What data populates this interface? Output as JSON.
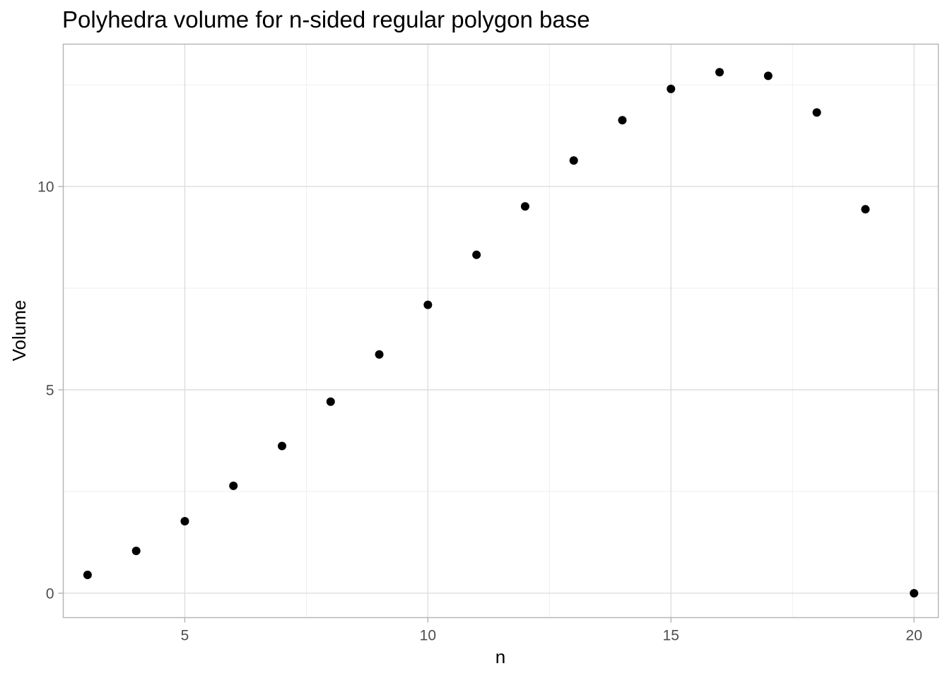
{
  "chart_data": {
    "type": "scatter",
    "title": "Polyhedra volume for n-sided regular polygon base",
    "xlabel": "n",
    "ylabel": "Volume",
    "xlim": [
      2.5,
      20.5
    ],
    "ylim": [
      -0.6,
      13.5
    ],
    "x_ticks": [
      5,
      10,
      15,
      20
    ],
    "x_tick_labels": [
      "5",
      "10",
      "15",
      "20"
    ],
    "y_ticks": [
      0,
      5,
      10
    ],
    "y_tick_labels": [
      "0",
      "5",
      "10"
    ],
    "grid": true,
    "legend": "none",
    "point_color": "#000000",
    "x": [
      3,
      4,
      5,
      6,
      7,
      8,
      9,
      10,
      11,
      12,
      13,
      14,
      15,
      16,
      17,
      18,
      19,
      20
    ],
    "y": [
      0.45,
      1.04,
      1.77,
      2.64,
      3.62,
      4.71,
      5.87,
      7.09,
      8.32,
      9.51,
      10.64,
      11.63,
      12.4,
      12.81,
      12.72,
      11.82,
      9.44,
      0.0
    ]
  }
}
